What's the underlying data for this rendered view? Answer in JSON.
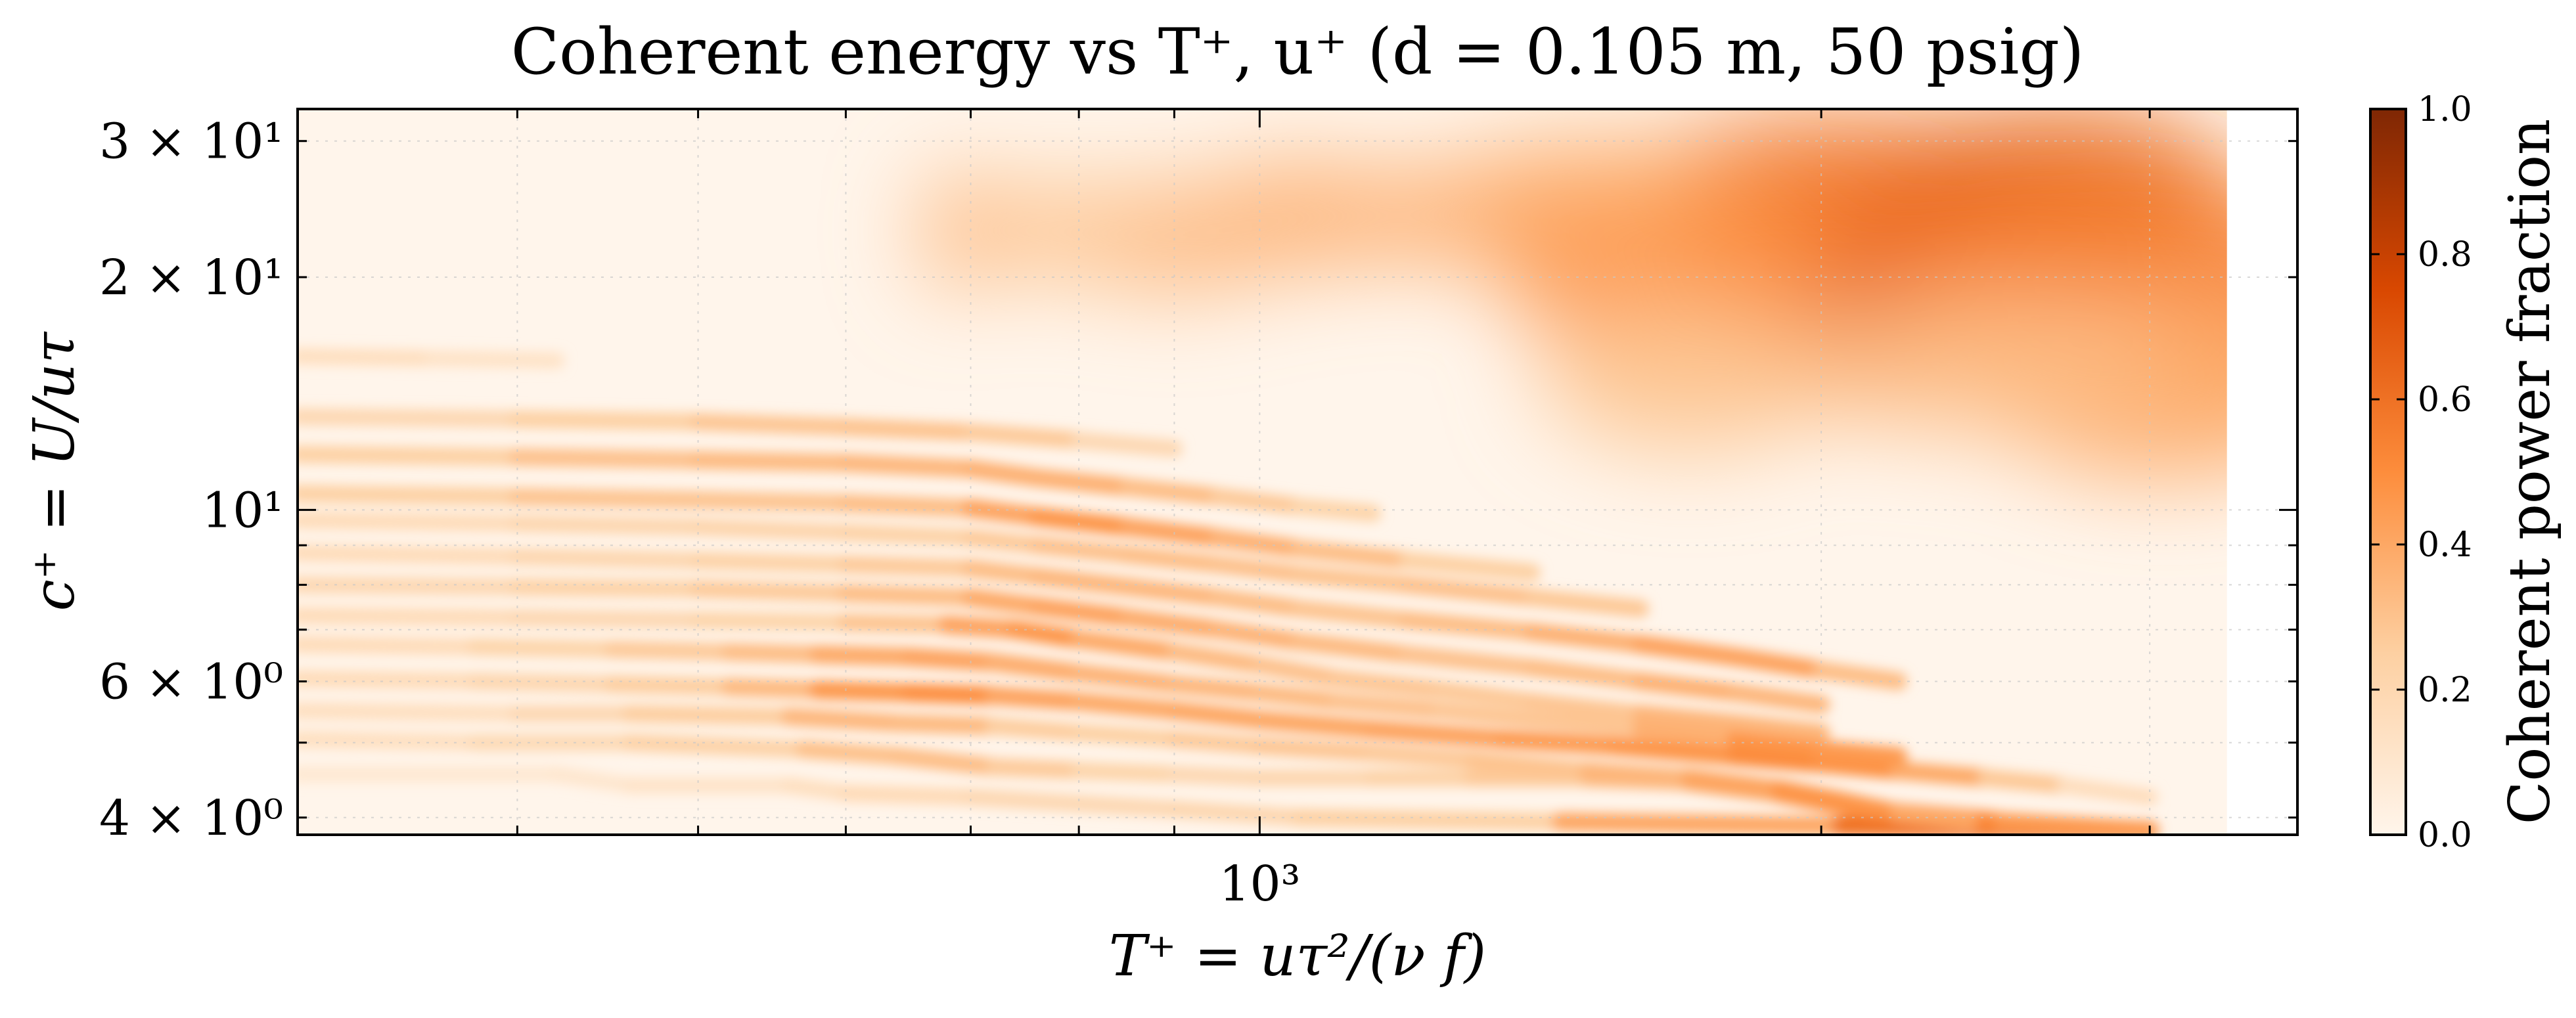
{
  "chart_data": {
    "type": "heatmap",
    "title": "Coherent energy vs T⁺, u⁺ (d = 0.105 m, 50 psig)",
    "xlabel": "T⁺ = uτ²/(ν f)",
    "ylabel": "c⁺ = U/uτ",
    "x_scale": "log",
    "y_scale": "log",
    "xlim": [
      305,
      3600
    ],
    "ylim": [
      3.8,
      33
    ],
    "grid": true,
    "x_ticks": [
      {
        "value": 1000,
        "label": "10³"
      }
    ],
    "y_ticks": [
      {
        "value": 4,
        "label": "4 × 10⁰"
      },
      {
        "value": 6,
        "label": "6 × 10⁰"
      },
      {
        "value": 10,
        "label": "10¹"
      },
      {
        "value": 20,
        "label": "2 × 10¹"
      },
      {
        "value": 30,
        "label": "3 × 10¹"
      }
    ],
    "colorbar": {
      "label": "Coherent power fraction",
      "min": 0.0,
      "max": 1.0,
      "ticks": [
        "0.0",
        "0.2",
        "0.4",
        "0.6",
        "0.8",
        "1.0"
      ],
      "colormap": "Oranges",
      "colors": [
        "#fff5eb",
        "#fdd0a2",
        "#fd8d3c",
        "#d94801",
        "#7f2704"
      ]
    },
    "data_extent_x_max": 3300,
    "bands": [
      {
        "x": [
          305,
          420,
          460,
          560,
          600,
          700,
          760,
          900,
          1050,
          1450,
          2050,
          3000
        ],
        "y": [
          4.55,
          4.55,
          4.4,
          4.4,
          4.3,
          4.25,
          4.2,
          4.1,
          4.0,
          3.95,
          3.9,
          3.85
        ],
        "intensity": [
          0.08,
          0.1,
          0.1,
          0.14,
          0.16,
          0.2,
          0.2,
          0.2,
          0.22,
          0.28,
          0.55,
          0.65
        ]
      },
      {
        "x": [
          305,
          380,
          460,
          570,
          640,
          720,
          800,
          900,
          1000,
          1150,
          1300,
          1500,
          1700,
          1900,
          2100,
          2500,
          3000
        ],
        "y": [
          5.05,
          5.0,
          5.0,
          4.9,
          4.8,
          4.65,
          4.6,
          4.55,
          4.5,
          4.5,
          4.5,
          4.5,
          4.45,
          4.3,
          4.1,
          3.95,
          3.85
        ],
        "intensity": [
          0.12,
          0.18,
          0.2,
          0.28,
          0.35,
          0.3,
          0.25,
          0.2,
          0.2,
          0.22,
          0.25,
          0.3,
          0.38,
          0.48,
          0.52,
          0.5,
          0.4
        ]
      },
      {
        "x": [
          305,
          400,
          460,
          560,
          640,
          720,
          800,
          900,
          1000,
          1150,
          1300,
          1500,
          1700,
          1900,
          2050,
          2200,
          2400
        ],
        "y": [
          5.5,
          5.45,
          5.45,
          5.4,
          5.3,
          5.25,
          5.15,
          5.05,
          4.95,
          4.85,
          4.75,
          4.6,
          4.5,
          4.35,
          4.2,
          4.05,
          3.95
        ],
        "intensity": [
          0.12,
          0.18,
          0.22,
          0.3,
          0.4,
          0.28,
          0.25,
          0.25,
          0.3,
          0.28,
          0.28,
          0.32,
          0.38,
          0.45,
          0.5,
          0.45,
          0.35
        ]
      },
      {
        "x": [
          305,
          380,
          450,
          520,
          580,
          650,
          720,
          800,
          900,
          1000,
          1150,
          1350,
          1550,
          1800,
          2000,
          2200,
          2450,
          2700,
          3000
        ],
        "y": [
          6.05,
          6.0,
          5.95,
          5.9,
          5.85,
          5.8,
          5.75,
          5.65,
          5.5,
          5.35,
          5.2,
          5.05,
          4.95,
          4.8,
          4.7,
          4.6,
          4.5,
          4.4,
          4.25
        ],
        "intensity": [
          0.15,
          0.2,
          0.22,
          0.3,
          0.38,
          0.55,
          0.45,
          0.4,
          0.4,
          0.42,
          0.4,
          0.45,
          0.45,
          0.5,
          0.52,
          0.45,
          0.35,
          0.22,
          0.1
        ]
      },
      {
        "x": [
          305,
          380,
          450,
          520,
          580,
          650,
          720,
          800,
          900,
          1000,
          1100,
          1250,
          1400,
          1600,
          1800,
          2000,
          2200
        ],
        "y": [
          6.7,
          6.65,
          6.6,
          6.55,
          6.5,
          6.45,
          6.35,
          6.15,
          5.95,
          5.8,
          5.65,
          5.5,
          5.35,
          5.2,
          5.05,
          4.9,
          4.8
        ],
        "intensity": [
          0.15,
          0.2,
          0.25,
          0.3,
          0.35,
          0.45,
          0.4,
          0.38,
          0.35,
          0.35,
          0.32,
          0.3,
          0.28,
          0.3,
          0.45,
          0.5,
          0.4
        ]
      },
      {
        "x": [
          305,
          400,
          500,
          600,
          680,
          740,
          800,
          900,
          1000,
          1100,
          1250,
          1400,
          1600,
          1800,
          2000
        ],
        "y": [
          7.3,
          7.25,
          7.2,
          7.15,
          7.1,
          7.0,
          6.8,
          6.55,
          6.3,
          6.05,
          5.85,
          5.65,
          5.45,
          5.3,
          5.15
        ],
        "intensity": [
          0.15,
          0.2,
          0.2,
          0.25,
          0.35,
          0.5,
          0.45,
          0.35,
          0.32,
          0.3,
          0.28,
          0.28,
          0.3,
          0.4,
          0.3
        ]
      },
      {
        "x": [
          305,
          400,
          500,
          600,
          700,
          760,
          850,
          950,
          1050,
          1200,
          1400,
          1600,
          1800,
          2000
        ],
        "y": [
          8.0,
          7.95,
          7.9,
          7.8,
          7.7,
          7.5,
          7.25,
          7.0,
          6.75,
          6.5,
          6.25,
          6.0,
          5.8,
          5.6
        ],
        "intensity": [
          0.18,
          0.22,
          0.25,
          0.3,
          0.35,
          0.45,
          0.4,
          0.38,
          0.35,
          0.32,
          0.3,
          0.35,
          0.4,
          0.3
        ]
      },
      {
        "x": [
          305,
          400,
          500,
          600,
          700,
          760,
          850,
          950,
          1050,
          1200,
          1400,
          1600,
          1800,
          2000,
          2200
        ],
        "y": [
          8.8,
          8.7,
          8.6,
          8.5,
          8.4,
          8.2,
          7.95,
          7.7,
          7.45,
          7.2,
          6.95,
          6.7,
          6.45,
          6.2,
          6.0
        ],
        "intensity": [
          0.15,
          0.2,
          0.22,
          0.25,
          0.3,
          0.35,
          0.35,
          0.35,
          0.3,
          0.3,
          0.35,
          0.4,
          0.45,
          0.4,
          0.25
        ]
      },
      {
        "x": [
          305,
          400,
          500,
          600,
          700,
          760,
          850,
          950,
          1050,
          1200,
          1400,
          1600
        ],
        "y": [
          9.7,
          9.6,
          9.5,
          9.35,
          9.2,
          9.0,
          8.75,
          8.5,
          8.25,
          8.0,
          7.7,
          7.45
        ],
        "intensity": [
          0.15,
          0.2,
          0.22,
          0.22,
          0.25,
          0.3,
          0.32,
          0.32,
          0.3,
          0.3,
          0.32,
          0.25
        ]
      },
      {
        "x": [
          305,
          400,
          500,
          600,
          700,
          760,
          850,
          950,
          1050,
          1200,
          1400
        ],
        "y": [
          10.5,
          10.4,
          10.3,
          10.2,
          10.05,
          9.8,
          9.5,
          9.2,
          8.9,
          8.6,
          8.3
        ],
        "intensity": [
          0.2,
          0.3,
          0.3,
          0.3,
          0.35,
          0.5,
          0.45,
          0.4,
          0.35,
          0.3,
          0.2
        ]
      },
      {
        "x": [
          305,
          400,
          500,
          600,
          700,
          760,
          850,
          950,
          1050,
          1150
        ],
        "y": [
          11.8,
          11.7,
          11.6,
          11.5,
          11.3,
          11.0,
          10.7,
          10.4,
          10.1,
          9.9
        ],
        "intensity": [
          0.2,
          0.3,
          0.32,
          0.35,
          0.35,
          0.4,
          0.35,
          0.3,
          0.25,
          0.2
        ]
      },
      {
        "x": [
          305,
          400,
          500,
          600,
          700,
          800,
          900
        ],
        "y": [
          13.2,
          13.1,
          13.0,
          12.8,
          12.6,
          12.3,
          12.0
        ],
        "intensity": [
          0.18,
          0.22,
          0.28,
          0.3,
          0.3,
          0.25,
          0.15
        ]
      },
      {
        "x": [
          305,
          360,
          420
        ],
        "y": [
          15.8,
          15.7,
          15.6
        ],
        "intensity": [
          0.15,
          0.15,
          0.1
        ]
      }
    ],
    "blobs": [
      {
        "x": 2000,
        "y": 22,
        "sx": 0.09,
        "sy": 0.09,
        "intensity": 0.5
      },
      {
        "x": 2050,
        "y": 18.5,
        "sx": 0.07,
        "sy": 0.1,
        "intensity": 0.75
      },
      {
        "x": 2050,
        "y": 25.5,
        "sx": 0.12,
        "sy": 0.1,
        "intensity": 0.6
      },
      {
        "x": 2700,
        "y": 26,
        "sx": 0.09,
        "sy": 0.1,
        "intensity": 0.68
      },
      {
        "x": 2900,
        "y": 20,
        "sx": 0.12,
        "sy": 0.14,
        "intensity": 0.55
      },
      {
        "x": 1650,
        "y": 21,
        "sx": 0.09,
        "sy": 0.12,
        "intensity": 0.48
      },
      {
        "x": 1500,
        "y": 26,
        "sx": 0.07,
        "sy": 0.06,
        "intensity": 0.4
      },
      {
        "x": 1250,
        "y": 24,
        "sx": 0.06,
        "sy": 0.06,
        "intensity": 0.4
      },
      {
        "x": 1050,
        "y": 24,
        "sx": 0.05,
        "sy": 0.07,
        "intensity": 0.38
      },
      {
        "x": 900,
        "y": 22.5,
        "sx": 0.06,
        "sy": 0.07,
        "intensity": 0.35
      },
      {
        "x": 780,
        "y": 23,
        "sx": 0.05,
        "sy": 0.06,
        "intensity": 0.3
      },
      {
        "x": 690,
        "y": 23,
        "sx": 0.02,
        "sy": 0.08,
        "intensity": 0.35
      },
      {
        "x": 1700,
        "y": 15,
        "sx": 0.08,
        "sy": 0.1,
        "intensity": 0.3
      },
      {
        "x": 3050,
        "y": 14.5,
        "sx": 0.1,
        "sy": 0.12,
        "intensity": 0.4
      },
      {
        "x": 2400,
        "y": 15.5,
        "sx": 0.11,
        "sy": 0.09,
        "intensity": 0.32
      }
    ]
  }
}
